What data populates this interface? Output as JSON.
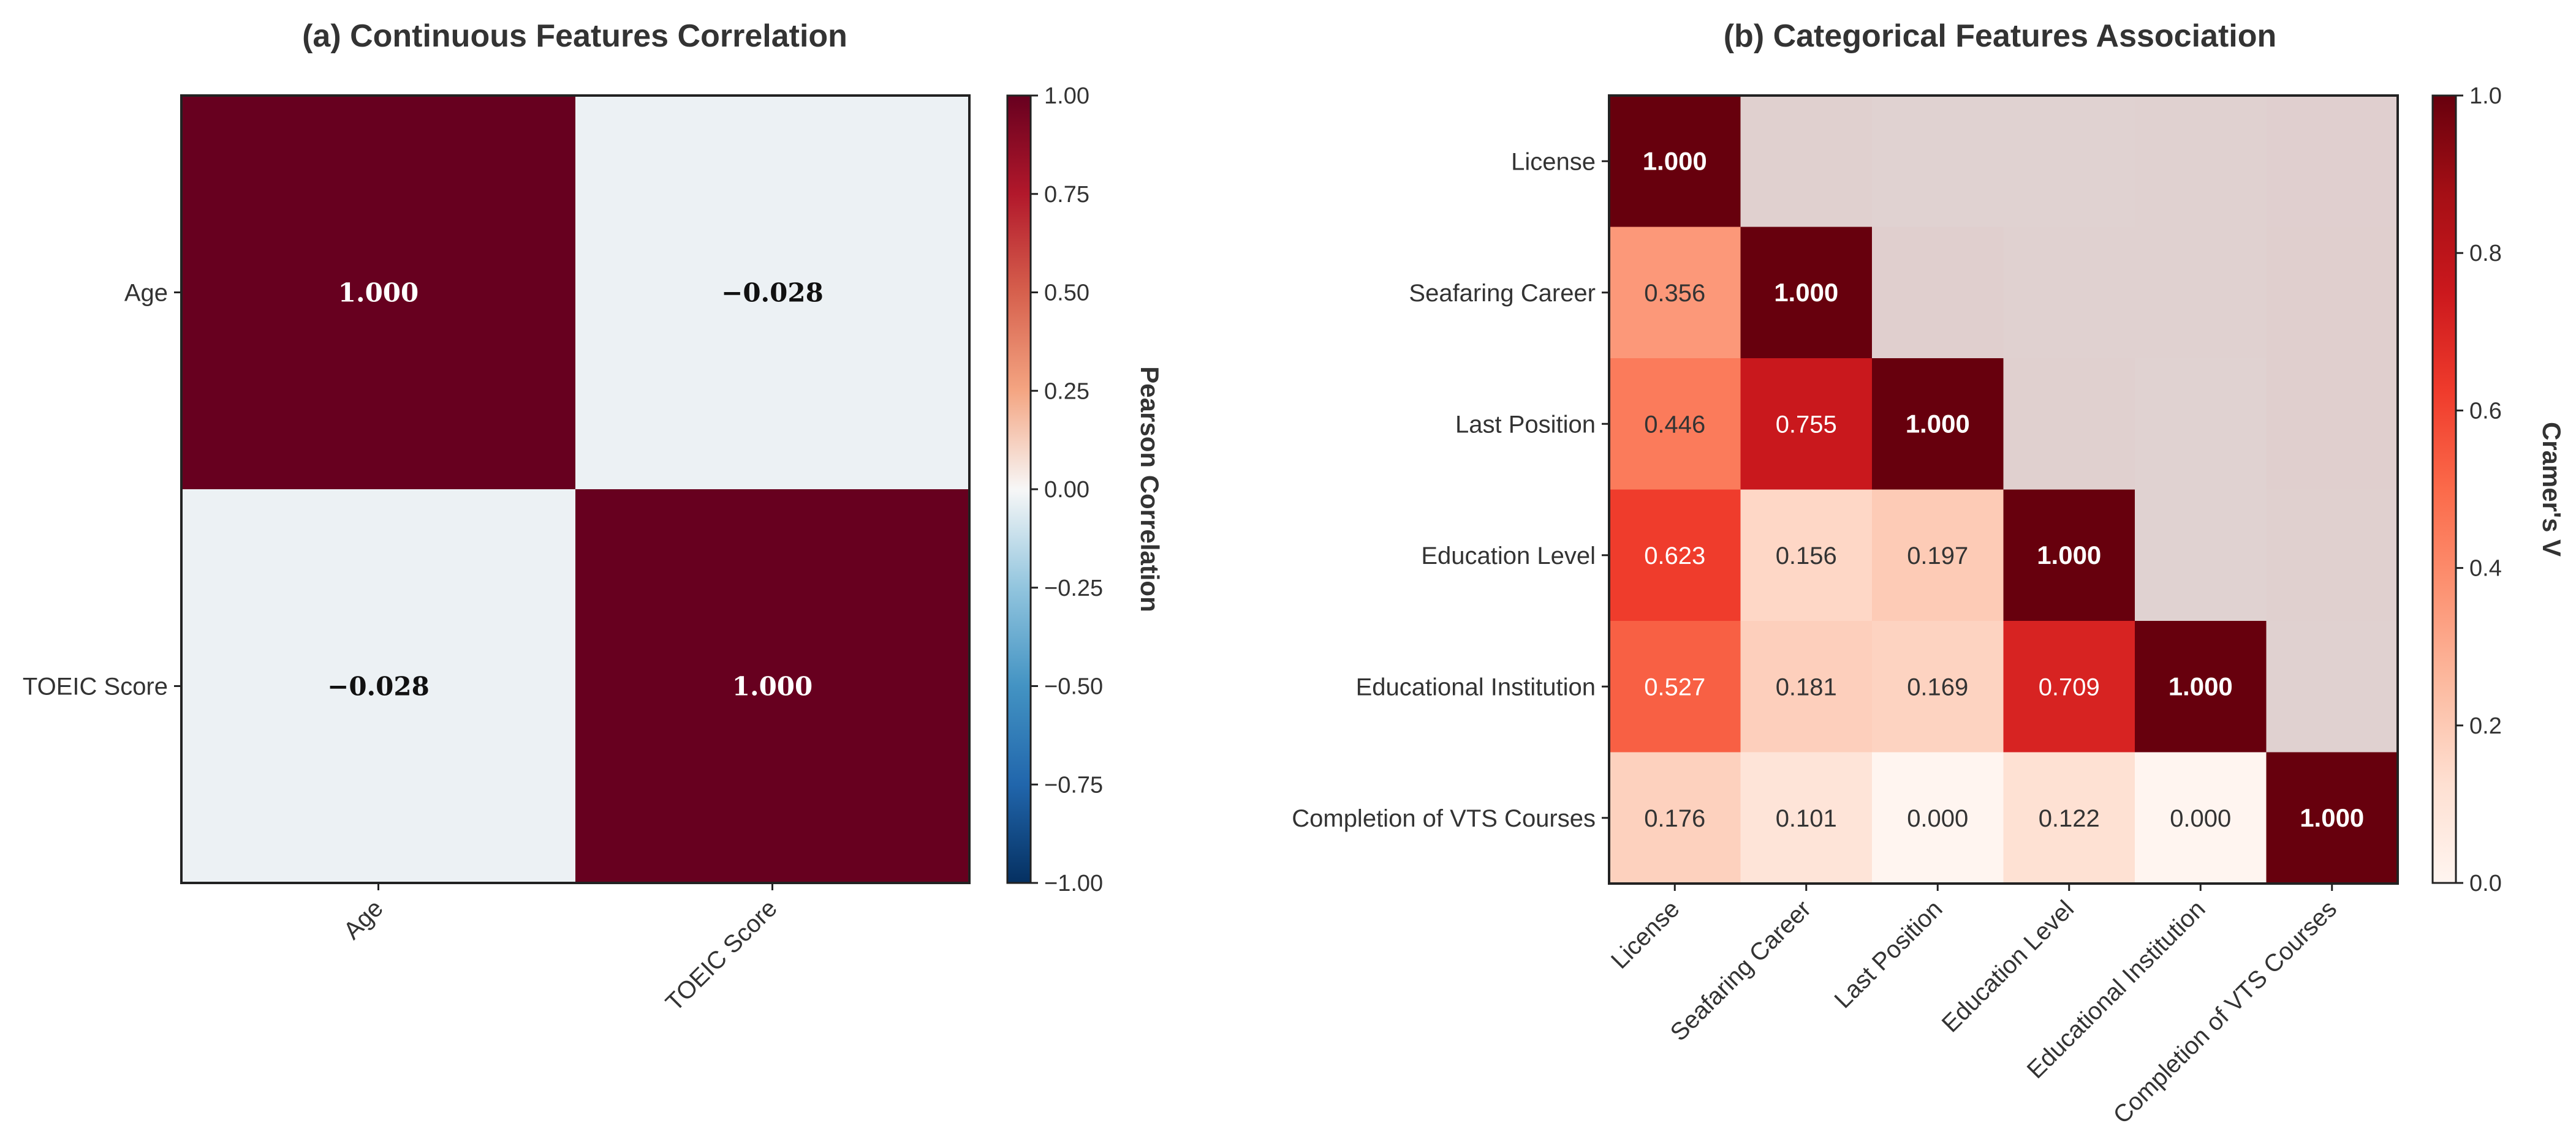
{
  "chart_data": [
    {
      "type": "heatmap",
      "title": "(a) Continuous Features Correlation",
      "rows": [
        "Age",
        "TOEIC Score"
      ],
      "columns": [
        "Age",
        "TOEIC Score"
      ],
      "values": [
        [
          1.0,
          -0.028
        ],
        [
          -0.028,
          1.0
        ]
      ],
      "value_labels": [
        [
          "1.000",
          "−0.028"
        ],
        [
          "−0.028",
          "1.000"
        ]
      ],
      "colormap": "RdBu_r",
      "vmin": -1.0,
      "vmax": 1.0,
      "colorbar_label": "Pearson Correlation",
      "colorbar_ticks": [
        1.0,
        0.75,
        0.5,
        0.25,
        0.0,
        -0.25,
        -0.5,
        -0.75,
        -1.0
      ],
      "colorbar_tick_labels": [
        "1.00",
        "0.75",
        "0.50",
        "0.25",
        "0.00",
        "−0.25",
        "−0.50",
        "−0.75",
        "−1.00"
      ]
    },
    {
      "type": "heatmap",
      "title": "(b) Categorical Features Association",
      "rows": [
        "License",
        "Seafaring Career",
        "Last Position",
        "Education Level",
        "Educational Institution",
        "Completion of VTS Courses"
      ],
      "columns": [
        "License",
        "Seafaring Career",
        "Last Position",
        "Education Level",
        "Educational Institution",
        "Completion of VTS Courses"
      ],
      "values": [
        [
          1.0,
          null,
          null,
          null,
          null,
          null
        ],
        [
          0.356,
          1.0,
          null,
          null,
          null,
          null
        ],
        [
          0.446,
          0.755,
          1.0,
          null,
          null,
          null
        ],
        [
          0.623,
          0.156,
          0.197,
          1.0,
          null,
          null
        ],
        [
          0.527,
          0.181,
          0.169,
          0.709,
          1.0,
          null
        ],
        [
          0.176,
          0.101,
          0.0,
          0.122,
          0.0,
          1.0
        ]
      ],
      "value_labels": [
        [
          "1.000",
          "",
          "",
          "",
          "",
          ""
        ],
        [
          "0.356",
          "1.000",
          "",
          "",
          "",
          ""
        ],
        [
          "0.446",
          "0.755",
          "1.000",
          "",
          "",
          ""
        ],
        [
          "0.623",
          "0.156",
          "0.197",
          "1.000",
          "",
          ""
        ],
        [
          "0.527",
          "0.181",
          "0.169",
          "0.709",
          "1.000",
          ""
        ],
        [
          "0.176",
          "0.101",
          "0.000",
          "0.122",
          "0.000",
          "1.000"
        ]
      ],
      "colormap": "Reds",
      "vmin": 0.0,
      "vmax": 1.0,
      "upper_triangle": "masked (faded)",
      "colorbar_label": "Cramer's V",
      "colorbar_ticks": [
        1.0,
        0.8,
        0.6,
        0.4,
        0.2,
        0.0
      ],
      "colorbar_tick_labels": [
        "1.0",
        "0.8",
        "0.6",
        "0.4",
        "0.2",
        "0.0"
      ]
    }
  ]
}
